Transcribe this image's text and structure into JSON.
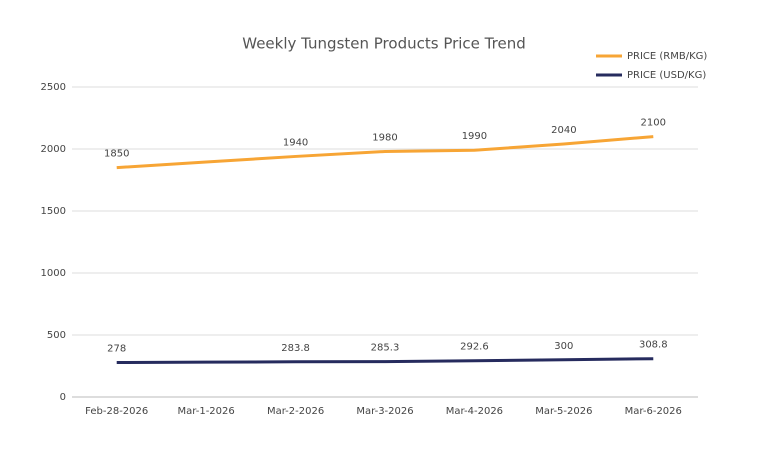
{
  "chart_data": {
    "type": "line",
    "title": "Weekly Tungsten Products Price Trend",
    "categories": [
      "Feb-28-2026",
      "Mar-1-2026",
      "Mar-2-2026",
      "Mar-3-2026",
      "Mar-4-2026",
      "Mar-5-2026",
      "Mar-6-2026"
    ],
    "series": [
      {
        "name": "PRICE (RMB/KG)",
        "color": "#f7a535",
        "values": [
          1850,
          1895,
          1940,
          1980,
          1990,
          2040,
          2100
        ],
        "value_labels": [
          "1850",
          null,
          "1940",
          "1980",
          "1990",
          "2040",
          "2100"
        ]
      },
      {
        "name": "PRICE (USD/KG)",
        "color": "#262b5e",
        "values": [
          278,
          281,
          283.8,
          285.3,
          292.6,
          300,
          308.8
        ],
        "value_labels": [
          "278",
          null,
          "283.8",
          "285.3",
          "292.6",
          "300",
          "308.8"
        ]
      }
    ],
    "ylim": [
      0,
      2500
    ],
    "yticks": [
      0,
      500,
      1000,
      1500,
      2000,
      2500
    ],
    "grid": true,
    "legend": "top-right"
  }
}
